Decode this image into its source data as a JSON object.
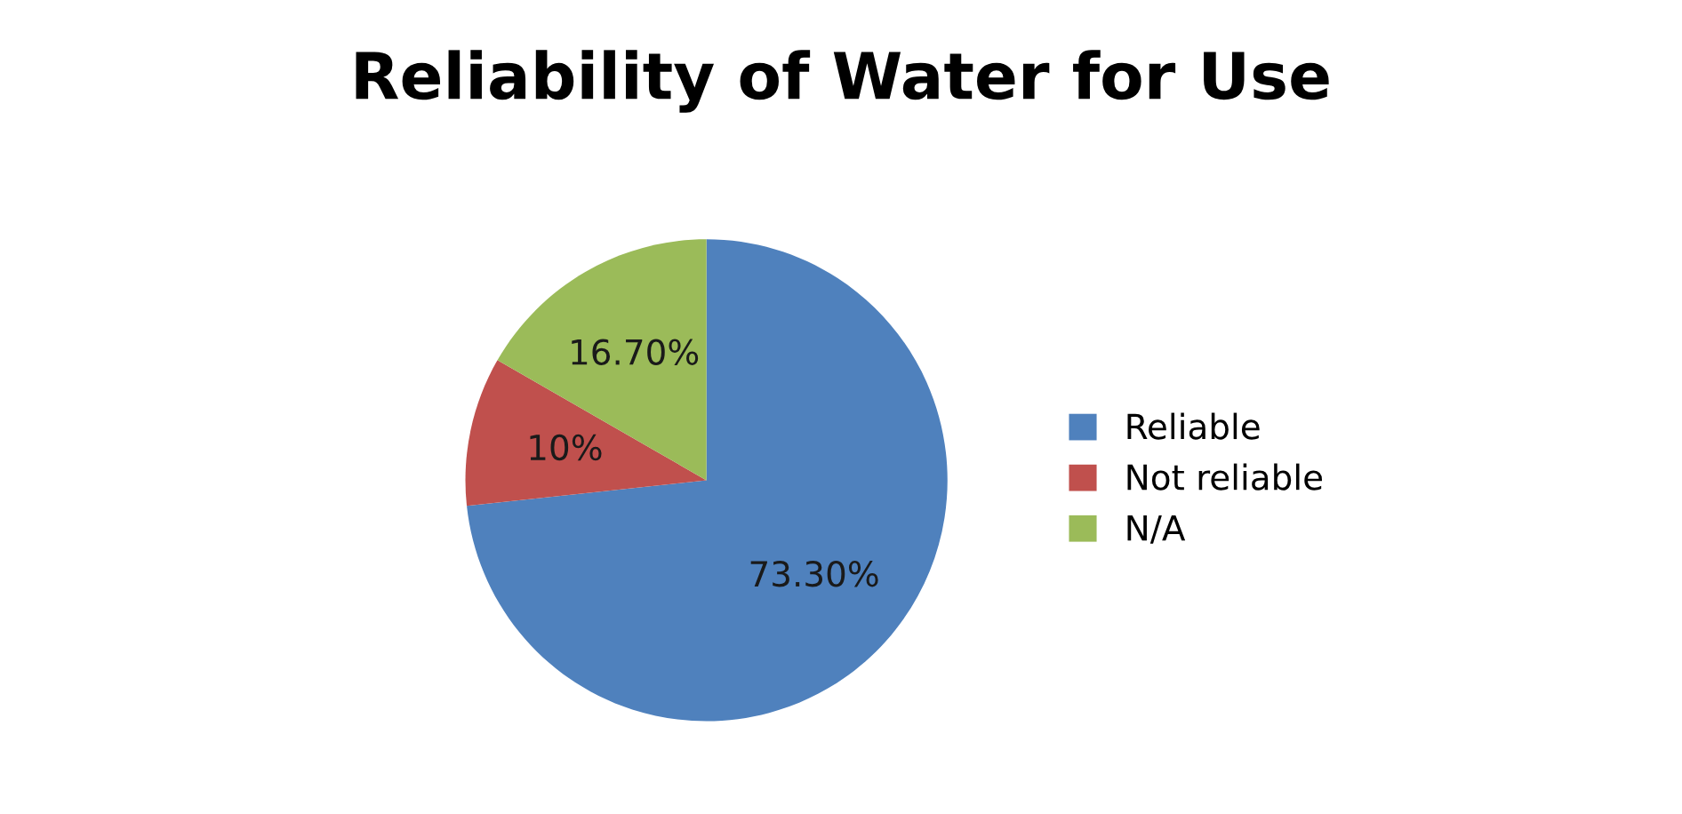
{
  "chart_data": {
    "type": "pie",
    "title": "Reliability of Water for Use",
    "categories": [
      "Reliable",
      "Not reliable",
      "N/A"
    ],
    "values": [
      73.3,
      10,
      16.7
    ],
    "value_labels": [
      "73.30%",
      "10%",
      "16.70%"
    ],
    "colors": [
      "#4f81bd",
      "#c0504d",
      "#9bbb59"
    ],
    "legend": "right"
  }
}
